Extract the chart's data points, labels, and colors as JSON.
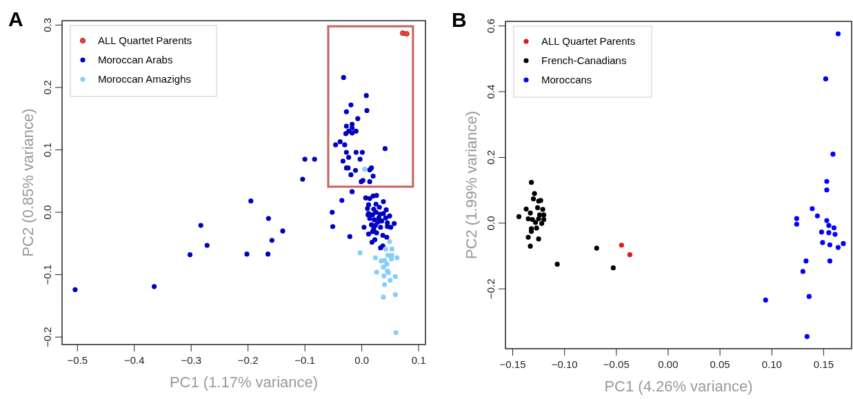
{
  "chart_data": [
    {
      "type": "scatter",
      "title": "A",
      "xlabel": "PC1 (1.17% variance)",
      "ylabel": "PC2 (0.85% variance)",
      "xlim": [
        -0.527,
        0.112
      ],
      "ylim": [
        -0.212,
        0.307
      ],
      "xticks": [
        {
          "value": -0.5,
          "label": "−0.5"
        },
        {
          "value": -0.4,
          "label": "−0.4"
        },
        {
          "value": -0.3,
          "label": "−0.3"
        },
        {
          "value": -0.2,
          "label": "−0.2"
        },
        {
          "value": -0.1,
          "label": "−0.1"
        },
        {
          "value": 0,
          "label": "0.0"
        },
        {
          "value": 0.1,
          "label": "0.1"
        }
      ],
      "yticks": [
        {
          "value": -0.2,
          "label": "−0.2"
        },
        {
          "value": -0.1,
          "label": "−0.1"
        },
        {
          "value": 0,
          "label": "0.0"
        },
        {
          "value": 0.1,
          "label": "0.1"
        },
        {
          "value": 0.2,
          "label": "0.2"
        },
        {
          "value": 0.3,
          "label": "0.3"
        }
      ],
      "legend": "top left",
      "marker": "circle",
      "grid": false,
      "series": [
        {
          "name": "ALL Quartet Parents",
          "color": "#e8453c",
          "x": [
            0.072,
            0.079
          ],
          "values": [
            0.287,
            0.286
          ]
        },
        {
          "name": "Moroccan Arabs",
          "color": "#0000c0",
          "x": [
            -0.504,
            -0.365,
            -0.302,
            -0.283,
            -0.272,
            -0.202,
            -0.195,
            -0.165,
            -0.164,
            -0.158,
            -0.139,
            -0.104,
            -0.1,
            -0.083,
            -0.052,
            -0.051,
            -0.035,
            -0.021,
            -0.017,
            -0.032,
            0.008,
            -0.019,
            -0.027,
            0.009,
            -0.007,
            -0.027,
            -0.017,
            -0.023,
            -0.028,
            -0.017,
            -0.01,
            -0.017,
            -0.046,
            -0.038,
            -0.03,
            0.041,
            -0.027,
            -0.01,
            0.001,
            -0.023,
            -0.003,
            -0.033,
            -0.027,
            -0.024,
            -0.011,
            0.014,
            0.017,
            -0.019,
            0.02,
            -0.001,
            0.002,
            0.014,
            0.007,
            0.014,
            0.02,
            0.026,
            0.012,
            0.025,
            0.038,
            0.01,
            0.021,
            0.031,
            0.043,
            0.012,
            0.019,
            0.025,
            0.032,
            0.038,
            0.049,
            0.014,
            0.022,
            0.03,
            0.035,
            0.045,
            0.057,
            0.004,
            0.017,
            0.024,
            0.033,
            0.045,
            0.051,
            0.012,
            0.019,
            0.026,
            0.037,
            0.044,
            0.018,
            0.023,
            0.033,
            0.037,
            0.011,
            0.028,
            0.021,
            0.042
          ],
          "values": [
            -0.124,
            -0.119,
            -0.068,
            -0.021,
            -0.053,
            -0.067,
            0.018,
            -0.067,
            -0.01,
            -0.045,
            -0.03,
            0.053,
            0.085,
            0.085,
            0.0,
            -0.023,
            0.019,
            -0.039,
            0.033,
            0.216,
            0.187,
            0.172,
            0.161,
            0.163,
            0.15,
            0.138,
            0.141,
            0.13,
            0.126,
            0.127,
            0.13,
            0.135,
            0.108,
            0.113,
            0.108,
            0.102,
            0.096,
            0.096,
            0.096,
            0.088,
            0.085,
            0.082,
            0.071,
            0.071,
            0.067,
            0.068,
            0.071,
            0.06,
            0.058,
            0.049,
            0.051,
            0.049,
            0.023,
            0.022,
            0.026,
            0.027,
            0.012,
            0.013,
            0.017,
            0.006,
            0.005,
            0.008,
            0.004,
            -0.002,
            -0.004,
            0.0,
            -0.003,
            -0.002,
            -0.006,
            -0.01,
            -0.012,
            -0.009,
            -0.014,
            -0.017,
            -0.018,
            -0.024,
            -0.02,
            -0.021,
            -0.024,
            -0.023,
            -0.024,
            -0.035,
            -0.031,
            -0.033,
            -0.037,
            -0.04,
            -0.048,
            -0.044,
            -0.057,
            -0.054,
            -0.004,
            -0.016,
            -0.027,
            -0.009
          ]
        },
        {
          "name": "Moroccan Amazighs",
          "color": "#87cefa",
          "x": [
            0.005,
            -0.003,
            0.049,
            0.042,
            0.053,
            0.024,
            0.034,
            0.04,
            0.046,
            0.053,
            0.062,
            0.044,
            0.052,
            0.038,
            0.026,
            0.045,
            0.047,
            0.039,
            0.059,
            0.04,
            0.05,
            0.038,
            0.059,
            0.06
          ],
          "values": [
            0.069,
            -0.065,
            -0.047,
            -0.059,
            -0.059,
            -0.073,
            -0.078,
            -0.077,
            -0.069,
            -0.069,
            -0.073,
            -0.083,
            -0.075,
            -0.088,
            -0.096,
            -0.094,
            -0.097,
            -0.102,
            -0.103,
            -0.116,
            -0.109,
            -0.136,
            -0.132,
            -0.193
          ]
        }
      ]
    },
    {
      "type": "scatter",
      "title": "B",
      "xlabel": "PC1 (4.26% variance)",
      "ylabel": "PC2 (1.99% variance)",
      "xlim": [
        -0.157,
        0.177
      ],
      "ylim": [
        -0.382,
        0.614
      ],
      "xticks": [
        {
          "value": -0.15,
          "label": "−0.15"
        },
        {
          "value": -0.1,
          "label": "−0.10"
        },
        {
          "value": -0.05,
          "label": "−0.05"
        },
        {
          "value": 0,
          "label": "0.00"
        },
        {
          "value": 0.05,
          "label": "0.05"
        },
        {
          "value": 0.1,
          "label": "0.10"
        },
        {
          "value": 0.15,
          "label": "0.15"
        }
      ],
      "yticks": [
        {
          "value": -0.2,
          "label": "−0.2"
        },
        {
          "value": 0,
          "label": "0.0"
        },
        {
          "value": 0.2,
          "label": "0.2"
        },
        {
          "value": 0.4,
          "label": "0.4"
        },
        {
          "value": 0.6,
          "label": "0.6"
        }
      ],
      "legend": "top left",
      "marker": "circle",
      "grid": false,
      "series": [
        {
          "name": "ALL Quartet Parents",
          "color": "#ee1111",
          "x": [
            -0.045,
            -0.037
          ],
          "values": [
            -0.067,
            -0.096
          ]
        },
        {
          "name": "French-Canadians",
          "color": "#000000",
          "x": [
            -0.144,
            -0.132,
            -0.129,
            -0.13,
            -0.125,
            -0.123,
            -0.137,
            -0.133,
            -0.126,
            -0.121,
            -0.135,
            -0.131,
            -0.125,
            -0.128,
            -0.124,
            -0.12,
            -0.12,
            -0.122,
            -0.127,
            -0.132,
            -0.132,
            -0.135,
            -0.125,
            -0.133,
            -0.107,
            -0.069,
            -0.053
          ],
          "values": [
            0.02,
            0.124,
            0.09,
            0.074,
            0.067,
            0.069,
            0.043,
            0.031,
            0.047,
            0.042,
            0.013,
            0.011,
            0.013,
            0.002,
            0.025,
            0.025,
            0.011,
            -0.001,
            -0.015,
            -0.017,
            -0.025,
            -0.043,
            -0.048,
            -0.07,
            -0.125,
            -0.076,
            -0.136
          ]
        },
        {
          "name": "Moroccans",
          "color": "#0000ff",
          "x": [
            0.164,
            0.152,
            0.159,
            0.153,
            0.153,
            0.139,
            0.144,
            0.124,
            0.124,
            0.153,
            0.155,
            0.16,
            0.148,
            0.155,
            0.161,
            0.149,
            0.156,
            0.169,
            0.164,
            0.133,
            0.156,
            0.13,
            0.136,
            0.094,
            0.134
          ],
          "values": [
            0.576,
            0.439,
            0.21,
            0.127,
            0.101,
            0.044,
            0.022,
            0.014,
            -0.003,
            0.008,
            -0.007,
            -0.014,
            -0.027,
            -0.029,
            -0.034,
            -0.059,
            -0.066,
            -0.062,
            -0.074,
            -0.115,
            -0.115,
            -0.147,
            -0.223,
            -0.234,
            -0.345
          ]
        }
      ]
    }
  ]
}
